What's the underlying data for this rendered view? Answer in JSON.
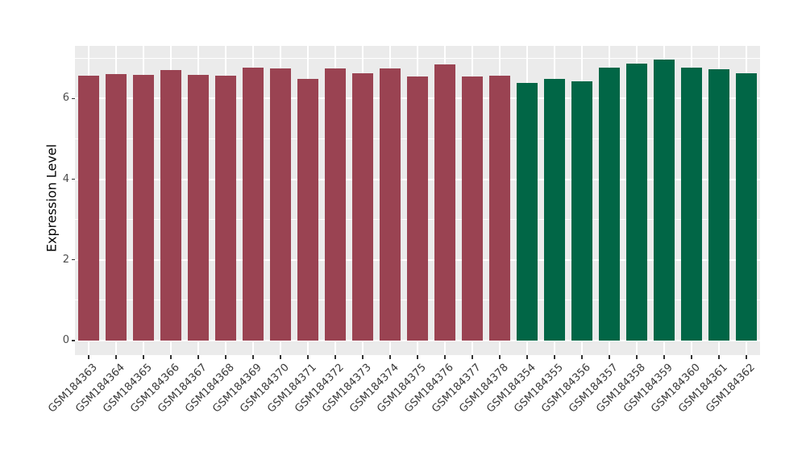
{
  "figure": {
    "background": "#FFFFFF",
    "panel_background": "#EBEBEB",
    "gridline_color": "#FFFFFF",
    "tick_color": "#333333",
    "axis_text_color": "#4D4D4D"
  },
  "chart_data": {
    "type": "bar",
    "title": "",
    "xlabel": "",
    "ylabel": "Expression Level",
    "ylim": [
      0,
      7.3
    ],
    "yticks_major": [
      0,
      2,
      4,
      6
    ],
    "yticks_minor": [
      1,
      3,
      5,
      7
    ],
    "grid": true,
    "legend_position": "none",
    "categories": [
      "GSM184363",
      "GSM184364",
      "GSM184365",
      "GSM184366",
      "GSM184367",
      "GSM184368",
      "GSM184369",
      "GSM184370",
      "GSM184371",
      "GSM184372",
      "GSM184373",
      "GSM184374",
      "GSM184375",
      "GSM184376",
      "GSM184377",
      "GSM184378",
      "GSM184354",
      "GSM184355",
      "GSM184356",
      "GSM184357",
      "GSM184358",
      "GSM184359",
      "GSM184360",
      "GSM184361",
      "GSM184362"
    ],
    "values": [
      6.57,
      6.6,
      6.58,
      6.71,
      6.59,
      6.57,
      6.77,
      6.75,
      6.48,
      6.75,
      6.63,
      6.74,
      6.55,
      6.85,
      6.55,
      6.57,
      6.38,
      6.49,
      6.43,
      6.76,
      6.87,
      6.96,
      6.77,
      6.72,
      6.63
    ],
    "bar_groups": [
      "maroon",
      "maroon",
      "maroon",
      "maroon",
      "maroon",
      "maroon",
      "maroon",
      "maroon",
      "maroon",
      "maroon",
      "maroon",
      "maroon",
      "maroon",
      "maroon",
      "maroon",
      "maroon",
      "green",
      "green",
      "green",
      "green",
      "green",
      "green",
      "green",
      "green",
      "green"
    ],
    "group_colors": {
      "maroon": "#9A4352",
      "green": "#016646"
    }
  }
}
